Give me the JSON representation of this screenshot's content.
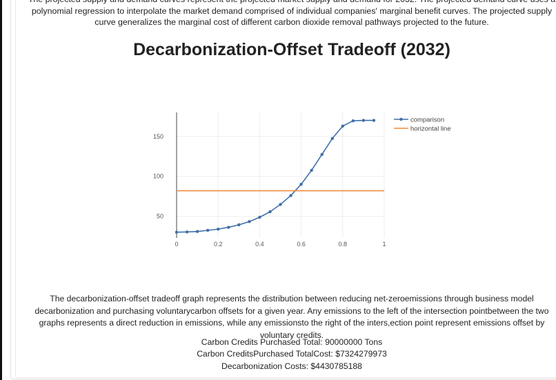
{
  "intro_text": "The projected supply and demand curves represent the projected market supply and demand for 2032. The projected demand curve uses a polynomial regression to interpolate the market demand comprised of individual companies' marginal benefit curves. The projected supply curve generalizes the marginal cost of different carbon dioxide removal pathways projected to the future.",
  "page_title": "Decarbonization-Offset Tradeoff (2032)",
  "chart_data": {
    "type": "line",
    "title": "",
    "xlabel": "",
    "ylabel": "",
    "xlim": [
      0,
      1
    ],
    "ylim": [
      23,
      180
    ],
    "x_ticks": [
      "0",
      "0.2",
      "0.4",
      "0.6",
      "0.8",
      "1"
    ],
    "y_ticks": [
      "50",
      "100",
      "150"
    ],
    "grid": true,
    "legend_placement": "top-right",
    "series": [
      {
        "name": "comparison",
        "color": "#3f6fa8",
        "mode": "lines+markers",
        "x": [
          0,
          0.05,
          0.1,
          0.15,
          0.2,
          0.25,
          0.3,
          0.35,
          0.4,
          0.45,
          0.5,
          0.55,
          0.6,
          0.65,
          0.7,
          0.75,
          0.8,
          0.85,
          0.9,
          0.95
        ],
        "y": [
          30.2,
          30.5,
          31,
          32.5,
          34,
          36.3,
          39.4,
          43.4,
          48.9,
          55.7,
          64.9,
          76,
          90.1,
          107.6,
          127.4,
          147.4,
          162.9,
          169.5,
          170,
          170
        ]
      },
      {
        "name": "horizontal line",
        "color": "#f08a3c",
        "mode": "lines",
        "x": [
          0,
          1
        ],
        "y": [
          82,
          82
        ]
      }
    ]
  },
  "explanation_text": "The decarbonization-offset tradeoff graph represents the distribution between reducing net-zeroemissions through business model decarbonization and purchasing voluntarycarbon offsets for a given year. Any emissions to the left of the intersection pointbetween the two graphs represents a direct reduction in emissions, while any emissionsto the right of the inters,ection point represent emissions offset by voluntary credits.",
  "stats": {
    "credits_total": "Carbon Credits Purchased Total: 90000000 Tons",
    "credits_cost": "Carbon CreditsPurchased TotalCost: $7324279973",
    "decarbonization_cost": "Decarbonization Costs: $4430785188"
  }
}
